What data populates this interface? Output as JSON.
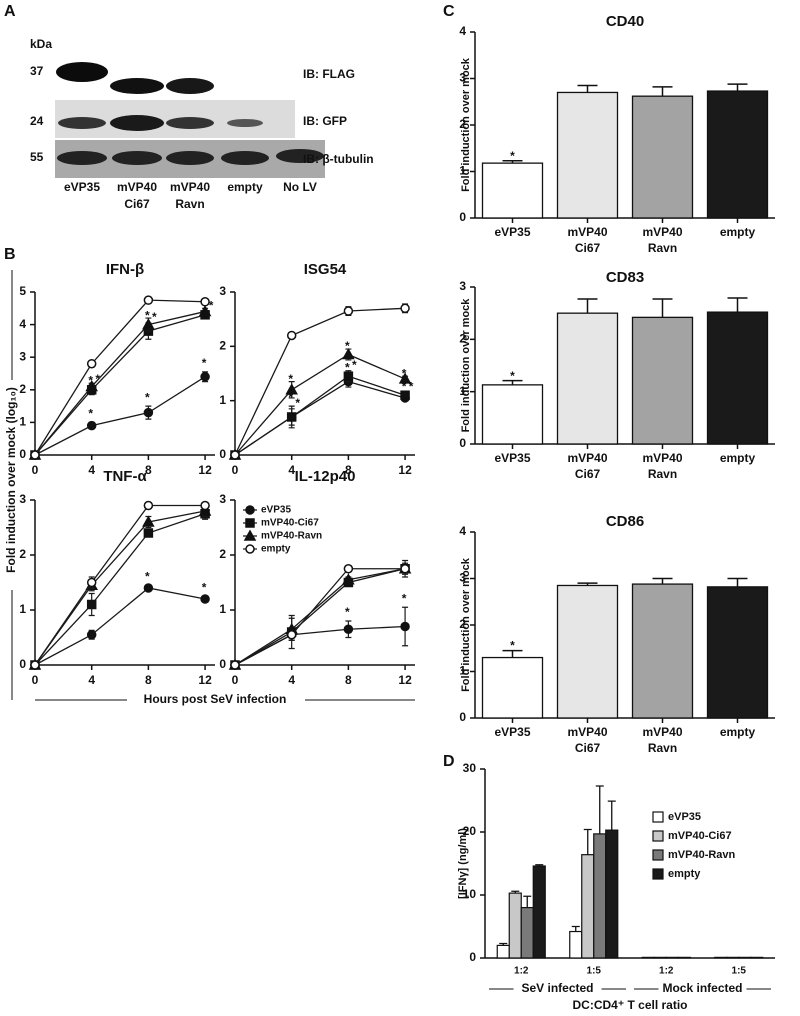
{
  "panel_labels": [
    "A",
    "B",
    "C",
    "D"
  ],
  "blot": {
    "unit": "kDa",
    "markers": [
      "37",
      "24",
      "55"
    ],
    "antibodies": [
      "IB: FLAG",
      "IB: GFP",
      "IB: β-tubulin"
    ],
    "lanes": [
      [
        "eVP35"
      ],
      [
        "mVP40",
        "Ci67"
      ],
      [
        "mVP40",
        "Ravn"
      ],
      [
        "empty"
      ],
      [
        "No LV"
      ]
    ]
  },
  "panel_b": {
    "ylabel": "Fold induction over mock (log₁₀)",
    "xlabel": "Hours post SeV infection"
  },
  "chart_data": [
    {
      "type": "line",
      "title": "IFN-β",
      "x": [
        0,
        4,
        8,
        12
      ],
      "xlim": [
        0,
        12.7
      ],
      "xticks": [
        0,
        4,
        8,
        12
      ],
      "ylim": [
        0,
        5
      ],
      "yticks": [
        0,
        1,
        2,
        3,
        4,
        5
      ],
      "series": [
        {
          "name": "eVP35",
          "color": "#1a1a1a",
          "marker": "circle",
          "values": [
            0,
            0.9,
            1.3,
            2.4
          ],
          "errors": [
            0,
            0.1,
            0.2,
            0.15
          ],
          "significance": [
            null,
            "*",
            "*",
            "*"
          ]
        },
        {
          "name": "mVP40-Ci67",
          "color": "#1a1a1a",
          "marker": "square",
          "values": [
            0,
            2.0,
            3.8,
            4.3
          ],
          "errors": [
            0,
            0.15,
            0.25,
            0.1
          ],
          "significance": [
            null,
            "*",
            "*",
            "*"
          ]
        },
        {
          "name": "mVP40-Ravn",
          "color": "#1a1a1a",
          "marker": "triangle",
          "values": [
            0,
            2.1,
            4.0,
            4.4
          ],
          "errors": [
            0,
            0.1,
            0.2,
            0.1
          ],
          "significance": [
            null,
            "*",
            "*",
            "*"
          ]
        },
        {
          "name": "empty",
          "color": "#1a1a1a",
          "marker": "open-circle",
          "values": [
            0,
            2.8,
            4.75,
            4.7
          ],
          "errors": [
            0,
            0.05,
            0.05,
            0.05
          ],
          "significance": [
            null,
            null,
            null,
            null
          ]
        }
      ]
    },
    {
      "type": "line",
      "title": "ISG54",
      "x": [
        0,
        4,
        8,
        12
      ],
      "xlim": [
        0,
        12.7
      ],
      "xticks": [
        0,
        4,
        8,
        12
      ],
      "ylim": [
        0,
        3
      ],
      "yticks": [
        0,
        1,
        2,
        3
      ],
      "series": [
        {
          "name": "eVP35",
          "color": "#1a1a1a",
          "marker": "circle",
          "values": [
            0,
            0.7,
            1.35,
            1.05
          ],
          "errors": [
            0,
            0.2,
            0.1,
            0.05
          ],
          "significance": [
            null,
            "*",
            "*",
            "*"
          ]
        },
        {
          "name": "mVP40-Ci67",
          "color": "#1a1a1a",
          "marker": "square",
          "values": [
            0,
            0.7,
            1.45,
            1.1
          ],
          "errors": [
            0,
            0.15,
            0.1,
            0.05
          ],
          "significance": [
            null,
            "*",
            "*",
            "*"
          ]
        },
        {
          "name": "mVP40-Ravn",
          "color": "#1a1a1a",
          "marker": "triangle",
          "values": [
            0,
            1.2,
            1.85,
            1.4
          ],
          "errors": [
            0,
            0.15,
            0.1,
            0.05
          ],
          "significance": [
            null,
            "*",
            "*",
            "*"
          ]
        },
        {
          "name": "empty",
          "color": "#1a1a1a",
          "marker": "open-circle",
          "values": [
            0,
            2.2,
            2.65,
            2.7
          ],
          "errors": [
            0,
            0.05,
            0.08,
            0.08
          ],
          "significance": [
            null,
            null,
            null,
            null
          ]
        }
      ]
    },
    {
      "type": "line",
      "title": "TNF-α",
      "x": [
        0,
        4,
        8,
        12
      ],
      "xlim": [
        0,
        12.7
      ],
      "xticks": [
        0,
        4,
        8,
        12
      ],
      "ylim": [
        0,
        3
      ],
      "yticks": [
        0,
        1,
        2,
        3
      ],
      "series": [
        {
          "name": "eVP35",
          "color": "#1a1a1a",
          "marker": "circle",
          "values": [
            0,
            0.55,
            1.4,
            1.2
          ],
          "errors": [
            0,
            0.08,
            0.05,
            0.05
          ],
          "significance": [
            null,
            null,
            "*",
            "*"
          ]
        },
        {
          "name": "mVP40-Ci67",
          "color": "#1a1a1a",
          "marker": "square",
          "values": [
            0,
            1.1,
            2.4,
            2.75
          ],
          "errors": [
            0,
            0.2,
            0.05,
            0.1
          ],
          "significance": [
            null,
            null,
            null,
            null
          ]
        },
        {
          "name": "mVP40-Ravn",
          "color": "#1a1a1a",
          "marker": "triangle",
          "values": [
            0,
            1.45,
            2.6,
            2.8
          ],
          "errors": [
            0,
            0.1,
            0.1,
            0.1
          ],
          "significance": [
            null,
            null,
            null,
            null
          ]
        },
        {
          "name": "empty",
          "color": "#1a1a1a",
          "marker": "open-circle",
          "values": [
            0,
            1.5,
            2.9,
            2.9
          ],
          "errors": [
            0,
            0.1,
            0.05,
            0.05
          ],
          "significance": [
            null,
            null,
            null,
            null
          ]
        }
      ]
    },
    {
      "type": "line",
      "title": "IL-12p40",
      "x": [
        0,
        4,
        8,
        12
      ],
      "xlim": [
        0,
        12.7
      ],
      "xticks": [
        0,
        4,
        8,
        12
      ],
      "ylim": [
        0,
        3
      ],
      "yticks": [
        0,
        1,
        2,
        3
      ],
      "legend": "upper-left",
      "series": [
        {
          "name": "eVP35",
          "color": "#1a1a1a",
          "marker": "circle",
          "values": [
            0,
            0.55,
            0.65,
            0.7
          ],
          "errors": [
            0,
            0.1,
            0.15,
            0.35
          ],
          "significance": [
            null,
            null,
            "*",
            "*"
          ]
        },
        {
          "name": "mVP40-Ci67",
          "color": "#1a1a1a",
          "marker": "square",
          "values": [
            0,
            0.6,
            1.5,
            1.75
          ],
          "errors": [
            0,
            0.3,
            0.05,
            0.15
          ],
          "significance": [
            null,
            null,
            null,
            null
          ]
        },
        {
          "name": "mVP40-Ravn",
          "color": "#1a1a1a",
          "marker": "triangle",
          "values": [
            0,
            0.65,
            1.55,
            1.75
          ],
          "errors": [
            0,
            0.2,
            0.05,
            0.1
          ],
          "significance": [
            null,
            null,
            null,
            null
          ]
        },
        {
          "name": "empty",
          "color": "#1a1a1a",
          "marker": "open-circle",
          "values": [
            0,
            0.55,
            1.75,
            1.75
          ],
          "errors": [
            0,
            0.05,
            0.05,
            0.05
          ],
          "significance": [
            null,
            null,
            null,
            null
          ]
        }
      ]
    },
    {
      "type": "bar",
      "title": "CD40",
      "ylabel": "Fold induction over mock",
      "categories": [
        [
          "eVP35"
        ],
        [
          "mVP40",
          "Ci67"
        ],
        [
          "mVP40",
          "Ravn"
        ],
        [
          "empty"
        ]
      ],
      "values": [
        1.18,
        2.7,
        2.62,
        2.73
      ],
      "errors": [
        0.05,
        0.15,
        0.2,
        0.15
      ],
      "significance": [
        "*",
        null,
        null,
        null
      ],
      "colors": [
        "#ffffff",
        "#e6e6e6",
        "#a3a3a3",
        "#1a1a1a"
      ],
      "ylim": [
        0,
        4
      ],
      "yticks": [
        0,
        1,
        2,
        3,
        4
      ]
    },
    {
      "type": "bar",
      "title": "CD83",
      "ylabel": "Fold induction over mock",
      "categories": [
        [
          "eVP35"
        ],
        [
          "mVP40",
          "Ci67"
        ],
        [
          "mVP40",
          "Ravn"
        ],
        [
          "empty"
        ]
      ],
      "values": [
        1.13,
        2.5,
        2.42,
        2.52
      ],
      "errors": [
        0.08,
        0.27,
        0.35,
        0.27
      ],
      "significance": [
        "*",
        null,
        null,
        null
      ],
      "colors": [
        "#ffffff",
        "#e6e6e6",
        "#a3a3a3",
        "#1a1a1a"
      ],
      "ylim": [
        0,
        3
      ],
      "yticks": [
        0,
        1,
        2,
        3
      ]
    },
    {
      "type": "bar",
      "title": "CD86",
      "ylabel": "Fold induction over mock",
      "categories": [
        [
          "eVP35"
        ],
        [
          "mVP40",
          "Ci67"
        ],
        [
          "mVP40",
          "Ravn"
        ],
        [
          "empty"
        ]
      ],
      "values": [
        1.3,
        2.85,
        2.88,
        2.82
      ],
      "errors": [
        0.15,
        0.05,
        0.12,
        0.18
      ],
      "significance": [
        "*",
        null,
        null,
        null
      ],
      "colors": [
        "#ffffff",
        "#e6e6e6",
        "#a3a3a3",
        "#1a1a1a"
      ],
      "ylim": [
        0,
        4
      ],
      "yticks": [
        0,
        1,
        2,
        3,
        4
      ]
    },
    {
      "type": "grouped-bar",
      "ylabel": "[IFNγ] (ng/ml)",
      "xlabel": "DC:CD4⁺ T cell ratio",
      "categories": [
        "1:2",
        "1:5",
        "1:2",
        "1:5"
      ],
      "group_labels": [
        "SeV infected",
        "Mock infected"
      ],
      "ylim": [
        0,
        30
      ],
      "yticks": [
        0,
        10,
        20,
        30
      ],
      "legend": "upper-right",
      "series": [
        {
          "name": "eVP35",
          "color": "#ffffff",
          "values": [
            2,
            4.2,
            0.1,
            0.1
          ],
          "errors": [
            0.3,
            0.8,
            0,
            0
          ]
        },
        {
          "name": "mVP40-Ci67",
          "color": "#c8c8c8",
          "values": [
            10.3,
            16.4,
            0.1,
            0.1
          ],
          "errors": [
            0.3,
            4,
            0,
            0
          ]
        },
        {
          "name": "mVP40-Ravn",
          "color": "#7a7a7a",
          "values": [
            8,
            19.7,
            0.1,
            0.1
          ],
          "errors": [
            1.8,
            7.6,
            0,
            0
          ]
        },
        {
          "name": "empty",
          "color": "#1a1a1a",
          "values": [
            14.6,
            20.3,
            0.1,
            0.1
          ],
          "errors": [
            0.2,
            4.6,
            0,
            0
          ]
        }
      ]
    }
  ]
}
